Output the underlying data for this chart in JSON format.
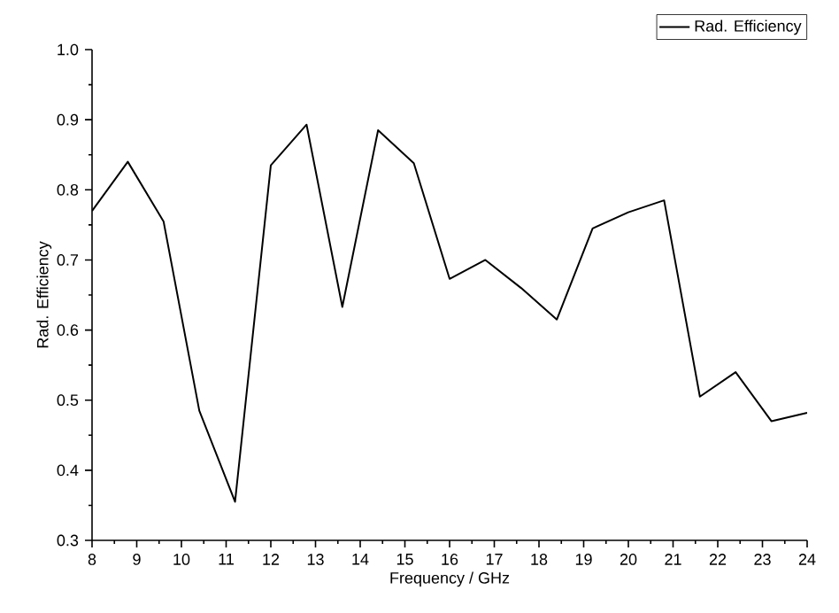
{
  "chart_data": {
    "type": "line",
    "xlabel": "Frequency / GHz",
    "ylabel": "Rad. Efficiency",
    "xlim": [
      8,
      24
    ],
    "ylim": [
      0.3,
      1.0
    ],
    "xticks": [
      8,
      9,
      10,
      11,
      12,
      13,
      14,
      15,
      16,
      17,
      18,
      19,
      20,
      21,
      22,
      23,
      24
    ],
    "yticks": [
      {
        "value": 0.3,
        "label": "0.3"
      },
      {
        "value": 0.4,
        "label": "0.4"
      },
      {
        "value": 0.5,
        "label": "0.5"
      },
      {
        "value": 0.6,
        "label": "0.6"
      },
      {
        "value": 0.7,
        "label": "0.7"
      },
      {
        "value": 0.8,
        "label": "0.8"
      },
      {
        "value": 0.9,
        "label": "0.9"
      },
      {
        "value": 1.0,
        "label": "1.0"
      }
    ],
    "legend": "top right",
    "marker": "none",
    "line_style": "solid",
    "grid": false,
    "series": [
      {
        "name": "Rad. Efficiency",
        "color": "#000000",
        "x": [
          8,
          8.8,
          9.6,
          10.4,
          11.2,
          12,
          12.8,
          13.6,
          14.4,
          15.2,
          16,
          16.8,
          17.6,
          18.4,
          19.2,
          20,
          20.8,
          21.6,
          22.4,
          23.2,
          24
        ],
        "values": [
          0.77,
          0.84,
          0.755,
          0.485,
          0.355,
          0.835,
          0.893,
          0.633,
          0.885,
          0.838,
          0.673,
          0.7,
          0.66,
          0.615,
          0.745,
          0.768,
          0.785,
          0.505,
          0.54,
          0.47,
          0.482
        ]
      }
    ]
  }
}
